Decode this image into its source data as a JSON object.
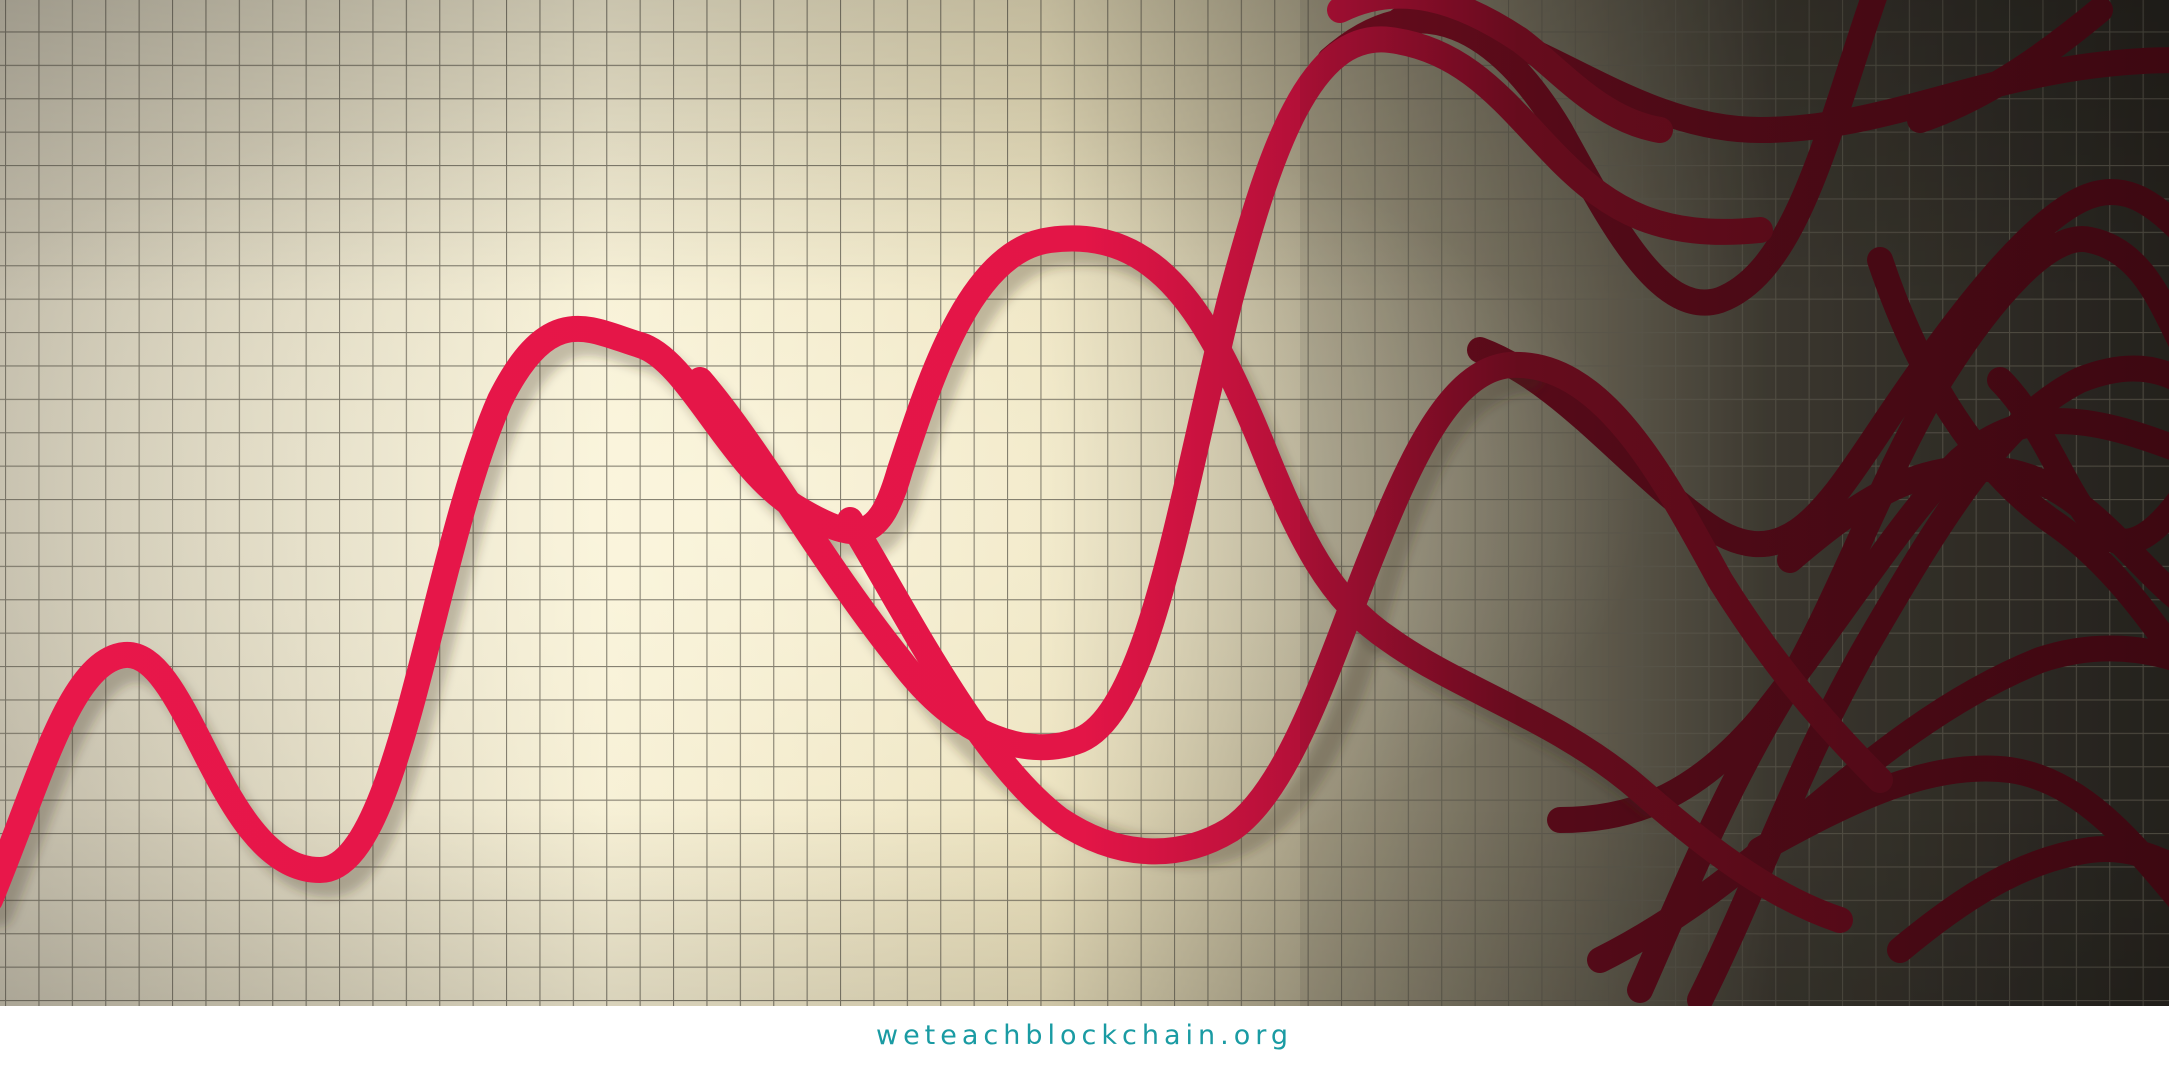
{
  "footer": {
    "site_url": "weteachblockchain.org"
  },
  "colors": {
    "line_bright": "#e8174a",
    "line_dark": "#4f0a16",
    "grid": "#5e5a4f",
    "paper_light": "#f4ecd2",
    "paper_dark": "#2b2822",
    "footer_text": "#1a9ba3"
  }
}
